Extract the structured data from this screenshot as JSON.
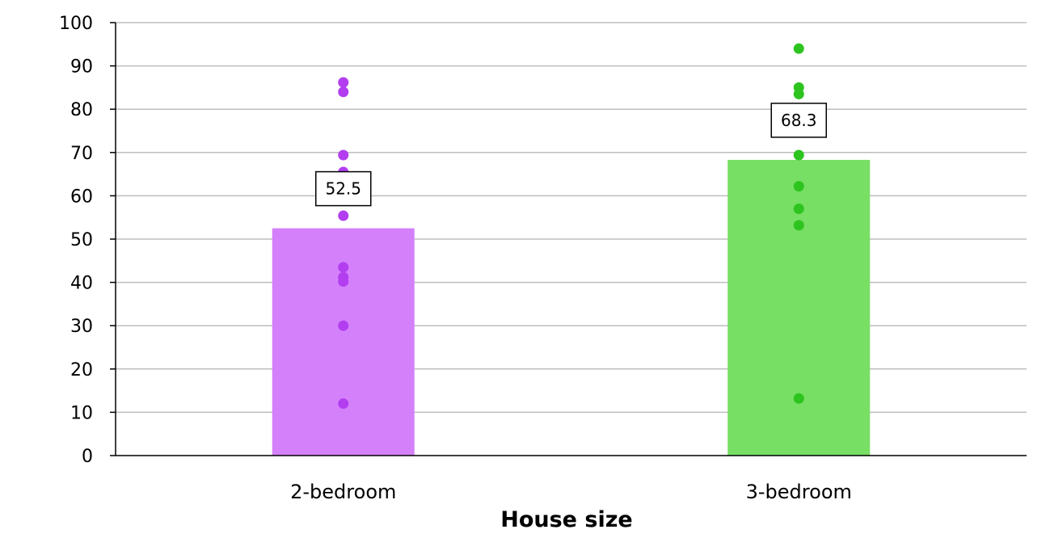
{
  "chart_data": {
    "type": "bar",
    "title": "",
    "xlabel": "House size",
    "ylabel": "",
    "ylim": [
      0,
      100
    ],
    "yticks": [
      0,
      10,
      20,
      30,
      40,
      50,
      60,
      70,
      80,
      90,
      100
    ],
    "grid": true,
    "categories": [
      "2-bedroom",
      "3-bedroom"
    ],
    "values": [
      52.5,
      68.3
    ],
    "value_labels": [
      "52.5",
      "68.3"
    ],
    "bar_colors": [
      "#d580fb",
      "#77df64"
    ],
    "points": [
      {
        "category": "2-bedroom",
        "color": "#b23ef0",
        "values": [
          86.2,
          84.0,
          69.4,
          65.5,
          55.4,
          43.5,
          41.2,
          40.2,
          30.0,
          12.0
        ]
      },
      {
        "category": "3-bedroom",
        "color": "#2ec41f",
        "values": [
          94.0,
          85.0,
          83.5,
          69.4,
          62.2,
          57.0,
          53.2,
          13.2
        ]
      }
    ]
  }
}
